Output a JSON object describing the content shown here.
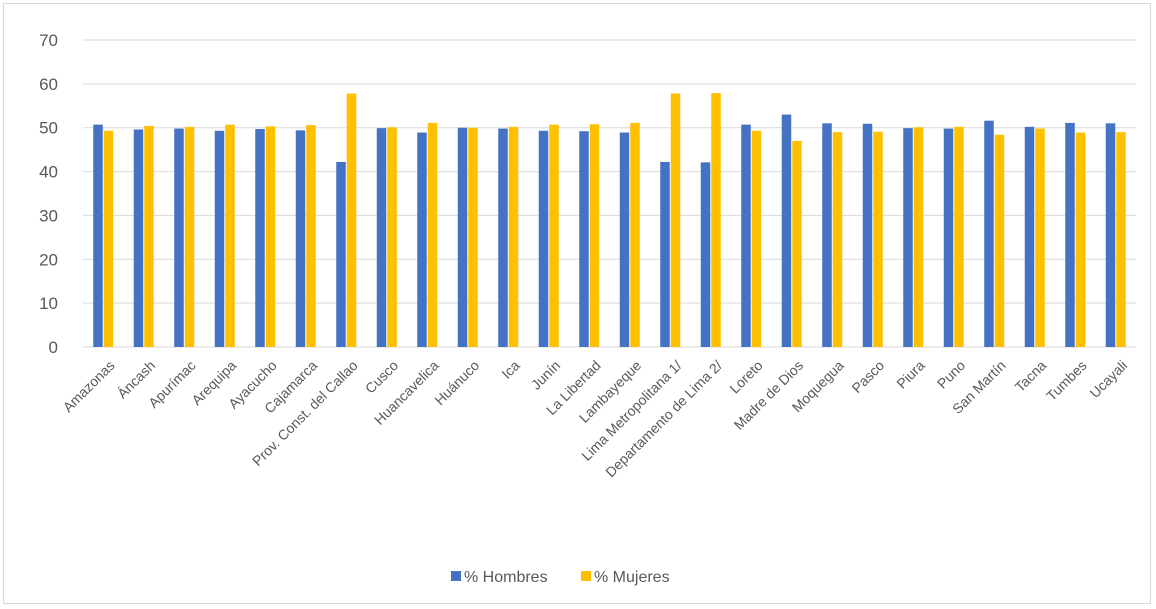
{
  "chart_data": {
    "type": "bar",
    "title": "",
    "xlabel": "",
    "ylabel": "",
    "ylim": [
      0,
      70
    ],
    "yticks": [
      0,
      10,
      20,
      30,
      40,
      50,
      60,
      70
    ],
    "grid": true,
    "legend_position": "bottom",
    "categories": [
      "Amazonas",
      "Áncash",
      "Apurímac",
      "Arequipa",
      "Ayacucho",
      "Cajamarca",
      "Prov. Const. del Callao",
      "Cusco",
      "Huancavelica",
      "Huánuco",
      "Ica",
      "Junín",
      "La Libertad",
      "Lambayeque",
      "Lima Metropolitana 1/",
      "Departamento de Lima 2/",
      "Loreto",
      "Madre de Dios",
      "Moquegua",
      "Pasco",
      "Piura",
      "Puno",
      "San Martín",
      "Tacna",
      "Tumbes",
      "Ucayali"
    ],
    "series": [
      {
        "name": "% Hombres",
        "color": "#4472c4",
        "values": [
          50.7,
          49.6,
          49.8,
          49.3,
          49.7,
          49.4,
          42.2,
          49.9,
          48.9,
          50.0,
          49.8,
          49.3,
          49.2,
          48.9,
          42.2,
          42.1,
          50.7,
          53.0,
          51.0,
          50.9,
          49.9,
          49.8,
          51.6,
          50.2,
          51.1,
          51.0
        ]
      },
      {
        "name": "% Mujeres",
        "color": "#ffc000",
        "values": [
          49.3,
          50.4,
          50.2,
          50.7,
          50.3,
          50.6,
          57.8,
          50.1,
          51.1,
          50.0,
          50.2,
          50.7,
          50.8,
          51.1,
          57.8,
          57.9,
          49.3,
          47.0,
          49.0,
          49.1,
          50.1,
          50.2,
          48.4,
          49.8,
          48.9,
          49.0
        ]
      }
    ]
  }
}
